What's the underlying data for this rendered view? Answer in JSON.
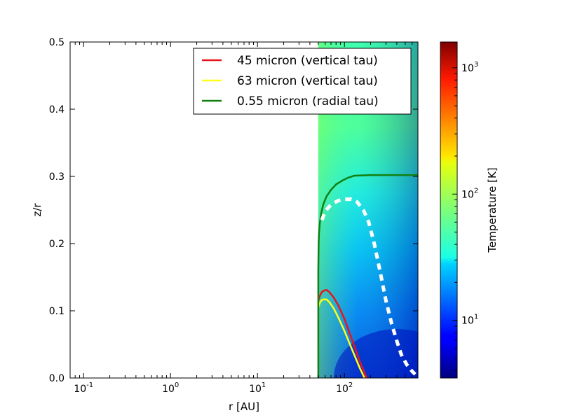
{
  "chart_data": {
    "type": "line",
    "title": "",
    "xlabel": "r [AU]",
    "ylabel": "z/r",
    "xscale": "log",
    "xlim": [
      0.07,
      700
    ],
    "ylim": [
      0,
      0.5
    ],
    "xticks": [
      {
        "value": 0.1,
        "base": "10",
        "exp": "-1"
      },
      {
        "value": 1,
        "base": "10",
        "exp": "0"
      },
      {
        "value": 10,
        "base": "10",
        "exp": "1"
      },
      {
        "value": 100,
        "base": "10",
        "exp": "2"
      }
    ],
    "yticks": [
      "0.0",
      "0.1",
      "0.2",
      "0.3",
      "0.4",
      "0.5"
    ],
    "legend_position": "top-right",
    "series": [
      {
        "name": "45 micron (vertical tau)",
        "color": "#e8141c",
        "x": [
          50,
          52,
          55,
          58,
          62,
          67,
          75,
          85,
          100,
          120,
          150,
          180
        ],
        "y": [
          0.115,
          0.122,
          0.128,
          0.13,
          0.131,
          0.128,
          0.12,
          0.108,
          0.088,
          0.06,
          0.025,
          0.0
        ]
      },
      {
        "name": "63 micron (vertical tau)",
        "color": "#ffff1a",
        "x": [
          50,
          52,
          55,
          58,
          62,
          67,
          75,
          85,
          100,
          120,
          150,
          170
        ],
        "y": [
          0.105,
          0.112,
          0.116,
          0.117,
          0.117,
          0.113,
          0.104,
          0.09,
          0.07,
          0.045,
          0.015,
          0.0
        ]
      },
      {
        "name": "0.55 micron (radial tau)",
        "color": "#128012",
        "x": [
          50,
          50,
          50.5,
          51,
          52,
          54,
          57,
          62,
          70,
          80,
          95,
          110,
          130,
          200,
          700
        ],
        "y": [
          0.0,
          0.16,
          0.2,
          0.215,
          0.23,
          0.245,
          0.258,
          0.27,
          0.28,
          0.288,
          0.294,
          0.298,
          0.301,
          0.302,
          0.302
        ]
      },
      {
        "name": "",
        "color": "#ffffff",
        "style": "dashed",
        "x": [
          55,
          60,
          70,
          85,
          100,
          120,
          140,
          165,
          190,
          220,
          260,
          300,
          350,
          400,
          450,
          520,
          600,
          680
        ],
        "y": [
          0.235,
          0.248,
          0.258,
          0.264,
          0.266,
          0.266,
          0.262,
          0.25,
          0.232,
          0.2,
          0.155,
          0.115,
          0.08,
          0.055,
          0.035,
          0.02,
          0.01,
          0.003
        ]
      }
    ],
    "colorbar": {
      "label": "Temperature [K]",
      "scale": "log",
      "range": [
        3.5,
        1600
      ],
      "ticks": [
        {
          "value": 10,
          "base": "10",
          "exp": "1"
        },
        {
          "value": 100,
          "base": "10",
          "exp": "2"
        },
        {
          "value": 1000,
          "base": "10",
          "exp": "3"
        }
      ],
      "colormap": "jet"
    },
    "temperature_map": {
      "r_range": [
        50,
        700
      ],
      "description_colors": [
        "#0000c8",
        "#0070ff",
        "#00e0f0",
        "#40ffb8",
        "#80ff80"
      ]
    }
  }
}
